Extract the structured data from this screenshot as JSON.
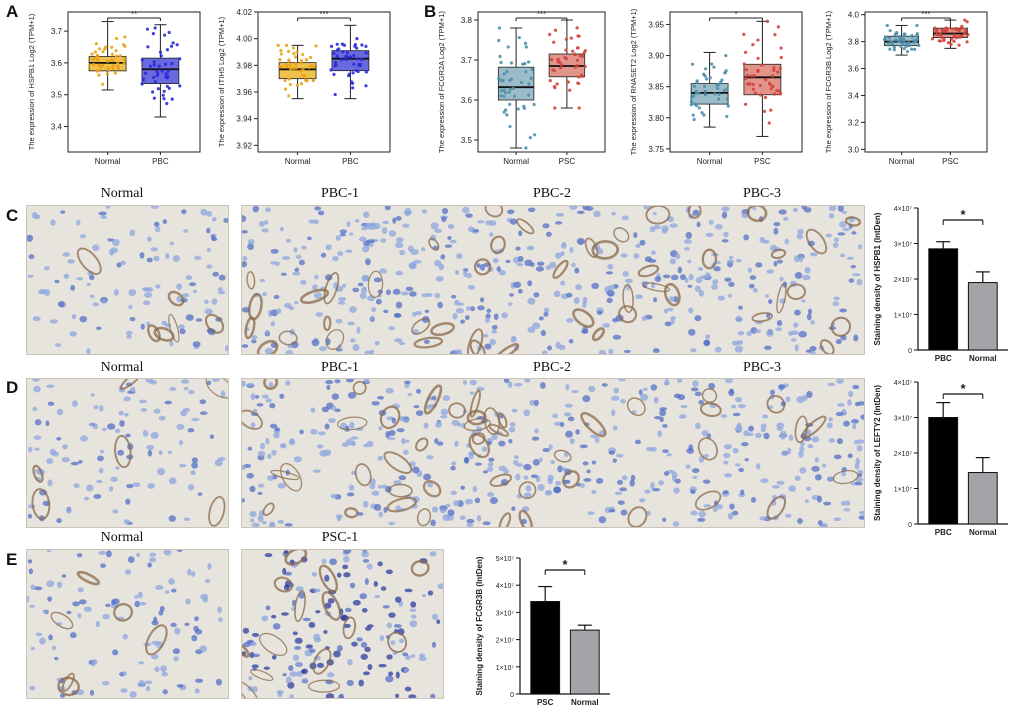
{
  "panel_letters": [
    "A",
    "B",
    "C",
    "D",
    "E"
  ],
  "box_plots": [
    {
      "panel": "A",
      "ylabel": "The expression of HSPB1 Log2 (TPM+1)",
      "yticks": [
        "3.4",
        "3.5",
        "3.6",
        "3.7"
      ],
      "ylim": [
        3.32,
        3.76
      ],
      "sig": "**",
      "groups": [
        {
          "name": "Normal",
          "q1": 3.575,
          "median": 3.6,
          "q3": 3.62,
          "lo": 3.515,
          "hi": 3.73,
          "color": "#f0c14b",
          "dot": "#e8a21a"
        },
        {
          "name": "PBC",
          "q1": 3.535,
          "median": 3.58,
          "q3": 3.615,
          "lo": 3.43,
          "hi": 3.72,
          "color": "#6a6ae0",
          "dot": "#2a2ad8"
        }
      ]
    },
    {
      "panel": "A",
      "ylabel": "The expression of ITIH5 Log2 (TPM+1)",
      "yticks": [
        "3.92",
        "3.94",
        "3.96",
        "3.98",
        "4.00",
        "4.02"
      ],
      "ylim": [
        3.915,
        4.02
      ],
      "sig": "***",
      "groups": [
        {
          "name": "Normal",
          "q1": 3.97,
          "median": 3.977,
          "q3": 3.982,
          "lo": 3.955,
          "hi": 3.995,
          "color": "#f0c14b",
          "dot": "#e8a21a"
        },
        {
          "name": "PBC",
          "q1": 3.976,
          "median": 3.985,
          "q3": 3.991,
          "lo": 3.955,
          "hi": 4.01,
          "color": "#6a6ae0",
          "dot": "#2a2ad8"
        }
      ]
    },
    {
      "panel": "B",
      "ylabel": "The expression of FCGR2A Log2 (TPM+1)",
      "yticks": [
        "3.5",
        "3.6",
        "3.7",
        "3.8"
      ],
      "ylim": [
        3.47,
        3.82
      ],
      "sig": "***",
      "groups": [
        {
          "name": "Normal",
          "q1": 3.6,
          "median": 3.632,
          "q3": 3.682,
          "lo": 3.48,
          "hi": 3.78,
          "color": "#9dbcc9",
          "dot": "#4c8fa8"
        },
        {
          "name": "PSC",
          "q1": 3.658,
          "median": 3.685,
          "q3": 3.715,
          "lo": 3.58,
          "hi": 3.8,
          "color": "#e2938a",
          "dot": "#d0453b"
        }
      ]
    },
    {
      "panel": "B",
      "ylabel": "The expression of RNASET2 Log2 (TPM+1)",
      "yticks": [
        "3.75",
        "3.80",
        "3.85",
        "3.90",
        "3.95"
      ],
      "ylim": [
        3.745,
        3.97
      ],
      "sig": "*",
      "groups": [
        {
          "name": "Normal",
          "q1": 3.822,
          "median": 3.84,
          "q3": 3.855,
          "lo": 3.785,
          "hi": 3.905,
          "color": "#9dbcc9",
          "dot": "#4c8fa8"
        },
        {
          "name": "PSC",
          "q1": 3.837,
          "median": 3.865,
          "q3": 3.886,
          "lo": 3.77,
          "hi": 3.955,
          "color": "#e2938a",
          "dot": "#d0453b"
        }
      ]
    },
    {
      "panel": "B",
      "ylabel": "The expression of FCGR3B Log2 (TPM+1)",
      "yticks": [
        "3.0",
        "3.2",
        "3.4",
        "3.6",
        "3.8",
        "4.0"
      ],
      "ylim": [
        2.98,
        4.02
      ],
      "sig": "***",
      "groups": [
        {
          "name": "Normal",
          "q1": 3.77,
          "median": 3.8,
          "q3": 3.84,
          "lo": 3.7,
          "hi": 3.92,
          "color": "#9dbcc9",
          "dot": "#4c8fa8"
        },
        {
          "name": "PSC",
          "q1": 3.83,
          "median": 3.86,
          "q3": 3.9,
          "lo": 3.75,
          "hi": 3.96,
          "color": "#e2938a",
          "dot": "#d0453b"
        }
      ]
    }
  ],
  "micro_labels": {
    "c": [
      "Normal",
      "PBC-1",
      "PBC-2",
      "PBC-3"
    ],
    "d": [
      "Normal",
      "PBC-1",
      "PBC-2",
      "PBC-3"
    ],
    "e": [
      "Normal",
      "PSC-1"
    ]
  },
  "bar_charts": [
    {
      "panel": "C",
      "ylabel": "Staining density of HSPB1 (IntDen)",
      "categories": [
        "PBC",
        "Normal"
      ],
      "values": [
        2.85,
        1.9
      ],
      "errors": [
        0.2,
        0.3
      ],
      "ylim": [
        0,
        4
      ],
      "yticks": [
        "0",
        "1×10⁷",
        "2×10⁷",
        "3×10⁷",
        "4×10⁷"
      ],
      "sig": "*",
      "colors": [
        "#000000",
        "#a3a3a8"
      ]
    },
    {
      "panel": "D",
      "ylabel": "Staining density of LEFTY2 (IntDen)",
      "categories": [
        "PBC",
        "Normal"
      ],
      "values": [
        3.0,
        1.45
      ],
      "errors": [
        0.42,
        0.42
      ],
      "ylim": [
        0,
        4
      ],
      "yticks": [
        "0",
        "1×10⁷",
        "2×10⁷",
        "3×10⁷",
        "4×10⁷"
      ],
      "sig": "*",
      "colors": [
        "#000000",
        "#a3a3a8"
      ]
    },
    {
      "panel": "E",
      "ylabel": "Staining density of FCGR3B (IntDen)",
      "categories": [
        "PSC",
        "Normal"
      ],
      "values": [
        3.4,
        2.35
      ],
      "errors": [
        0.55,
        0.18
      ],
      "ylim": [
        0,
        5
      ],
      "yticks": [
        "0",
        "1×10⁷",
        "2×10⁷",
        "3×10⁷",
        "4×10⁷",
        "5×10⁷"
      ],
      "sig": "*",
      "colors": [
        "#000000",
        "#a3a3a8"
      ]
    }
  ],
  "chart_data": [
    {
      "type": "box",
      "ylabel": "The expression of HSPB1 Log2 (TPM+1)",
      "categories": [
        "Normal",
        "PBC"
      ],
      "medians": [
        3.6,
        3.58
      ]
    },
    {
      "type": "box",
      "ylabel": "The expression of ITIH5 Log2 (TPM+1)",
      "categories": [
        "Normal",
        "PBC"
      ],
      "medians": [
        3.977,
        3.985
      ]
    },
    {
      "type": "box",
      "ylabel": "The expression of FCGR2A Log2 (TPM+1)",
      "categories": [
        "Normal",
        "PSC"
      ],
      "medians": [
        3.632,
        3.685
      ]
    },
    {
      "type": "box",
      "ylabel": "The expression of RNASET2 Log2 (TPM+1)",
      "categories": [
        "Normal",
        "PSC"
      ],
      "medians": [
        3.84,
        3.865
      ]
    },
    {
      "type": "box",
      "ylabel": "The expression of FCGR3B Log2 (TPM+1)",
      "categories": [
        "Normal",
        "PSC"
      ],
      "medians": [
        3.8,
        3.86
      ]
    },
    {
      "type": "bar",
      "ylabel": "Staining density of HSPB1 (IntDen)",
      "categories": [
        "PBC",
        "Normal"
      ],
      "values": [
        28500000,
        19000000
      ]
    },
    {
      "type": "bar",
      "ylabel": "Staining density of LEFTY2 (IntDen)",
      "categories": [
        "PBC",
        "Normal"
      ],
      "values": [
        30000000,
        14500000
      ]
    },
    {
      "type": "bar",
      "ylabel": "Staining density of FCGR3B (IntDen)",
      "categories": [
        "PSC",
        "Normal"
      ],
      "values": [
        34000000,
        23500000
      ]
    }
  ]
}
